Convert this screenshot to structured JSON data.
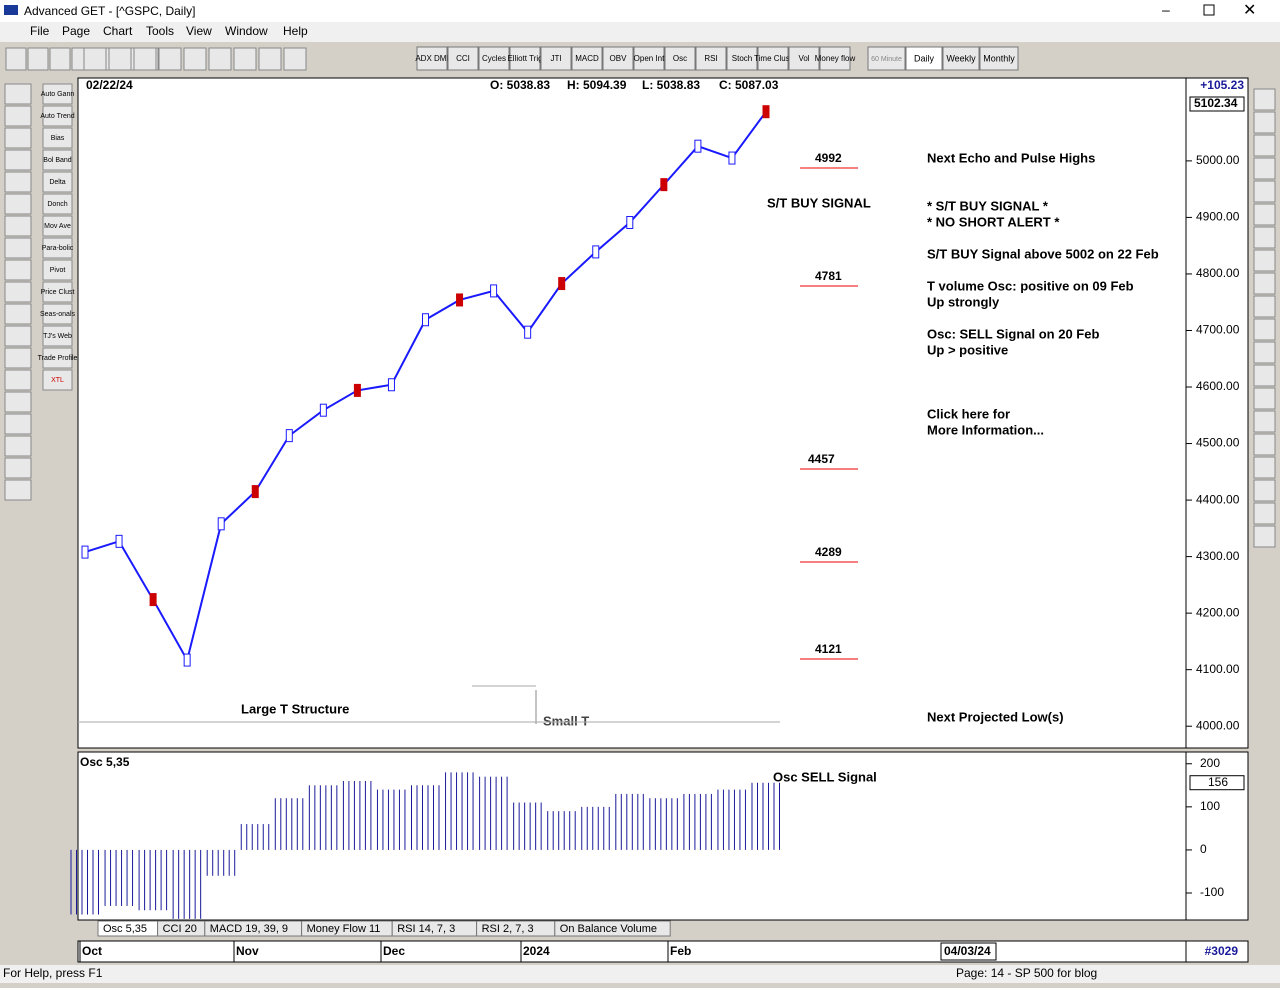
{
  "window": {
    "title": "Advanced GET - [^GSPC, Daily]"
  },
  "menu": [
    "File",
    "Page",
    "Chart",
    "Tools",
    "View",
    "Window",
    "Help"
  ],
  "toolbar": {
    "indicators": [
      "ADX DMI",
      "CCI",
      "Cycles",
      "Elliott Trig",
      "JTI",
      "MACD",
      "OBV",
      "Open Int",
      "Osc",
      "RSI",
      "Stoch",
      "Time Clust",
      "Vol",
      "Money flow"
    ],
    "periods": [
      "60 Minute",
      "Daily",
      "Weekly",
      "Monthly"
    ]
  },
  "palette": [
    "Auto Gann",
    "Auto Trend",
    "Bias",
    "Bol Band",
    "Delta",
    "Donch",
    "Mov Ave",
    "Para-bolic",
    "Pivot",
    "Price Clust",
    "Seas-onals",
    "TJ's Web",
    "Trade Profile",
    "XTL"
  ],
  "header": {
    "date": "02/22/24",
    "open": "O: 5038.83",
    "high": "H: 5094.39",
    "low": "L: 5038.83",
    "close": "C: 5087.03",
    "change": "+105.23"
  },
  "chart_data": [
    {
      "type": "line",
      "color": "#1a1aff",
      "values": [
        4308,
        4327,
        4224,
        4117,
        4358,
        4415,
        4514,
        4559,
        4594,
        4604,
        4719,
        4754,
        4770,
        4697,
        4783,
        4839,
        4891,
        4958,
        5026,
        5005,
        5087
      ],
      "ylim": [
        3965,
        5113
      ],
      "yticks": [
        {
          "value": 4000,
          "label": "4000.00"
        },
        {
          "value": 4100,
          "label": "4100.00"
        },
        {
          "value": 4200,
          "label": "4200.00"
        },
        {
          "value": 4300,
          "label": "4300.00"
        },
        {
          "value": 4400,
          "label": "4400.00"
        },
        {
          "value": 4500,
          "label": "4500.00"
        },
        {
          "value": 4600,
          "label": "4600.00"
        },
        {
          "value": 4700,
          "label": "4700.00"
        },
        {
          "value": 4800,
          "label": "4800.00"
        },
        {
          "value": 4900,
          "label": "4900.00"
        },
        {
          "value": 5000,
          "label": "5000.00"
        }
      ],
      "last_label": "5102.34"
    },
    {
      "type": "bar",
      "title": "Osc 5,35",
      "color": "#1a1a9a",
      "values": [
        -150,
        -130,
        -140,
        -160,
        -60,
        60,
        120,
        150,
        160,
        140,
        150,
        180,
        170,
        110,
        90,
        100,
        130,
        120,
        130,
        140,
        156
      ],
      "ylim": [
        -158,
        218
      ],
      "yticks": [
        -100,
        0,
        100,
        200
      ],
      "current": 156
    }
  ],
  "levels": [
    "4992",
    "4781",
    "4457",
    "4289",
    "4121"
  ],
  "chart_labels": {
    "buy": "S/T BUY SIGNAL",
    "large": "Large T Structure",
    "small": "Small T",
    "osc_sell": "Osc SELL Signal"
  },
  "notes": [
    "Next Echo and Pulse Highs",
    "* S/T BUY SIGNAL *",
    "* NO SHORT ALERT *",
    "S/T BUY Signal above 5002 on 22 Feb",
    "T volume Osc: positive on 09 Feb",
    "Up strongly",
    "Osc: SELL Signal on 20 Feb",
    "Up > positive",
    "Click here for",
    "More Information...",
    "Next Projected Low(s)"
  ],
  "tabs": [
    "Osc 5,35",
    "CCI 20",
    "MACD 19, 39, 9",
    "Money Flow 11",
    "RSI 14, 7, 3",
    "RSI 2, 7, 3",
    "On Balance Volume"
  ],
  "months": [
    "Oct",
    "Nov",
    "Dec",
    "2024",
    "Feb"
  ],
  "end_date": "04/03/24",
  "bar_count": "#3029",
  "status": {
    "help": "For Help, press F1",
    "page": "Page: 14 - SP 500 for blog"
  }
}
